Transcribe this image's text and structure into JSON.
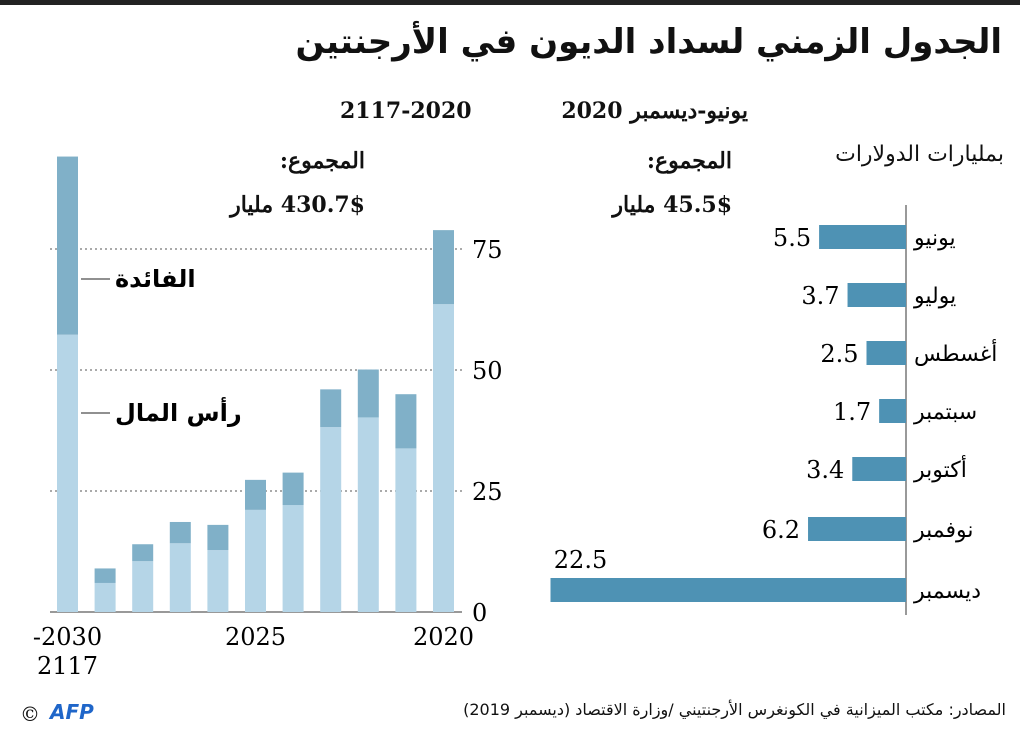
{
  "title": "الجدول الزمني لسداد الديون في الأرجنتين",
  "colors": {
    "capital": "#b5d5e7",
    "interest": "#80b0c8",
    "monthly": "#4e92b4",
    "grid": "#555555"
  },
  "chart_data": [
    {
      "type": "bar",
      "stacked": true,
      "orientation": "vertical",
      "period": "2117-2020",
      "total_label": "المجموع:",
      "total_value": "430.7$ مليار",
      "categories": [
        "2030-2117",
        "2029",
        "2028",
        "2027",
        "2026",
        "2025",
        "2024",
        "2023",
        "2022",
        "2021",
        "2020"
      ],
      "x_tick_labels": [
        {
          "category": "2030-2117",
          "label": "-2030\n2117"
        },
        {
          "category": "2025",
          "label": "2025"
        },
        {
          "category": "2020",
          "label": "2020"
        }
      ],
      "x_reversed": true,
      "series": [
        {
          "name": "رأس المال",
          "values": [
            57.3,
            6.0,
            10.5,
            14.2,
            12.8,
            21.1,
            22.1,
            38.2,
            40.2,
            33.8,
            63.6
          ]
        },
        {
          "name": "الفائدة",
          "values": [
            36.8,
            3.0,
            3.5,
            4.4,
            5.2,
            6.2,
            6.7,
            7.8,
            9.9,
            11.2,
            15.3
          ]
        }
      ],
      "yticks": [
        0,
        25,
        50,
        75
      ],
      "ylim": [
        0,
        95
      ],
      "grid": true,
      "yaxis_position": "right"
    },
    {
      "type": "bar",
      "orientation": "horizontal",
      "period": "يونيو-ديسمبر 2020",
      "unit": "بمليارات الدولارات",
      "total_label": "المجموع:",
      "total_value": "45.5$ مليار",
      "categories": [
        "يونيو",
        "يوليو",
        "أغسطس",
        "سبتمبر",
        "أكتوبر",
        "نوفمبر",
        "ديسمبر"
      ],
      "values": [
        5.5,
        3.7,
        2.5,
        1.7,
        3.4,
        6.2,
        22.5
      ],
      "value_labels": [
        "5.5",
        "3.7",
        "2.5",
        "1.7",
        "3.4",
        "6.2",
        "22.5"
      ]
    }
  ],
  "source": "المصادر: مكتب الميزانية في الكونغرس الأرجنتيني /وزارة الاقتصاد (ديسمبر 2019)",
  "logo": "AFP",
  "copyright": "©"
}
